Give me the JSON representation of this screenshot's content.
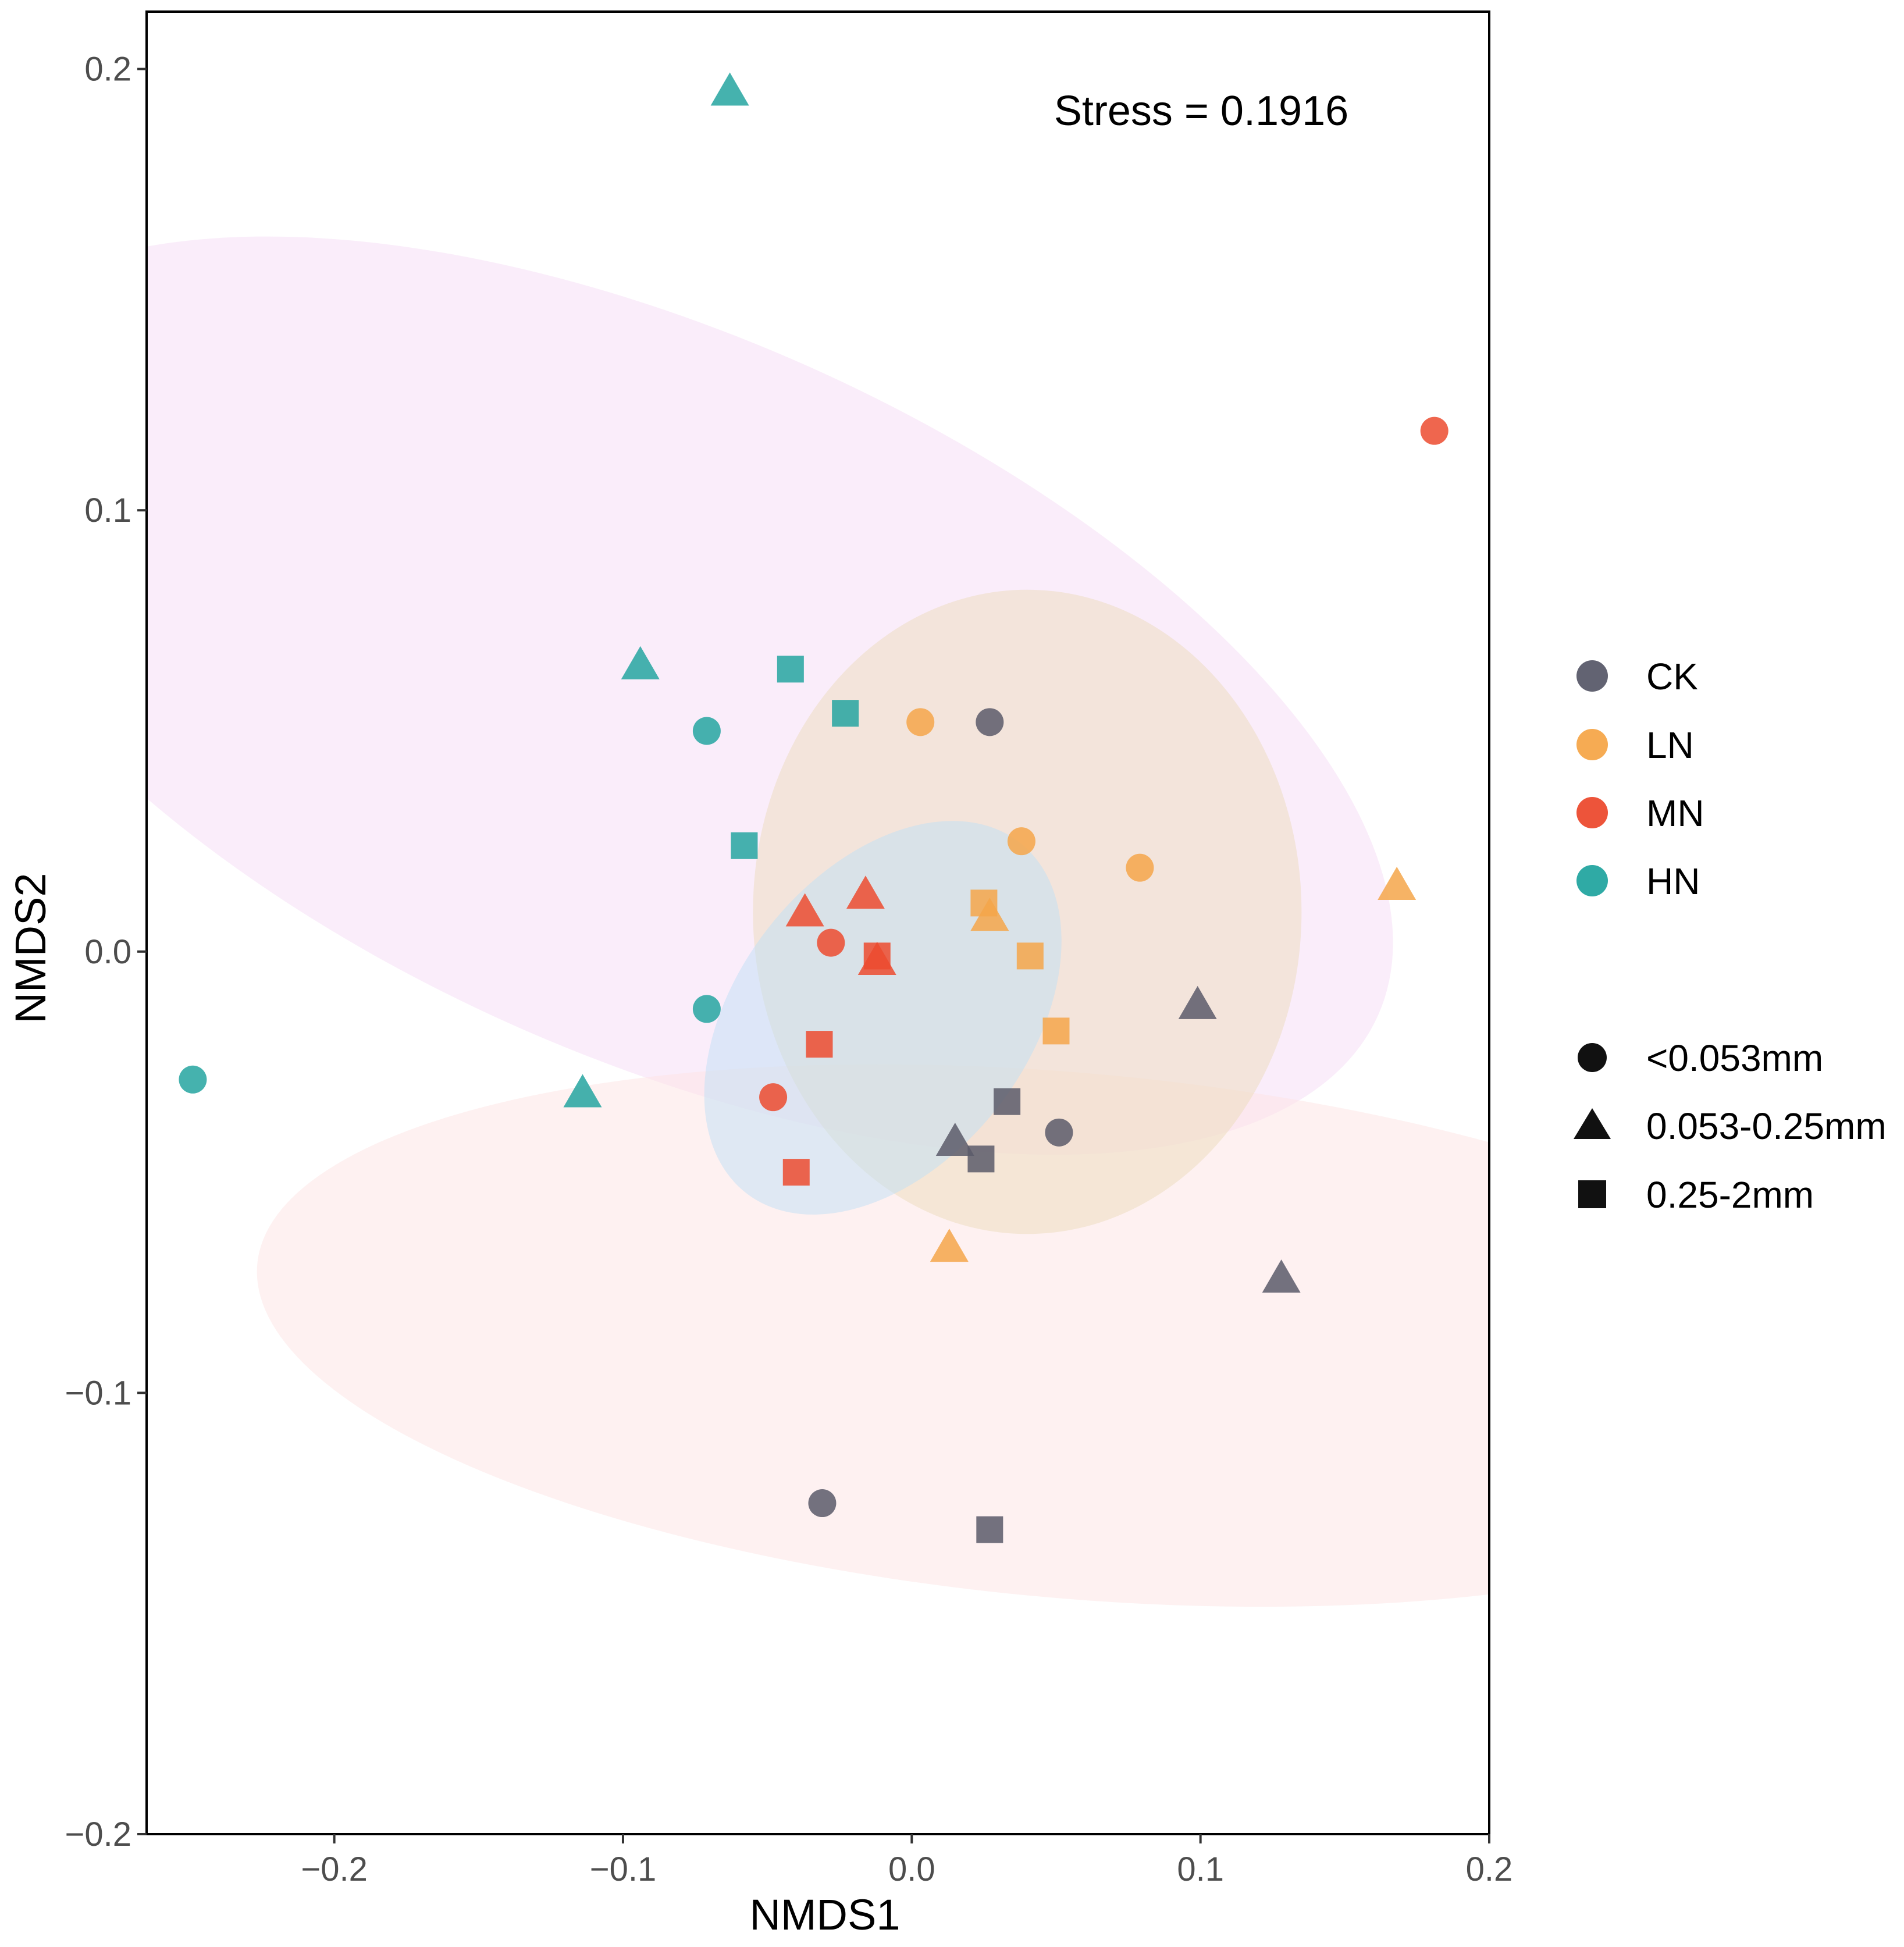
{
  "chart_data": {
    "type": "scatter",
    "title": "",
    "xlabel": "NMDS1",
    "ylabel": "NMDS2",
    "xlim": [
      -0.265,
      0.2
    ],
    "ylim": [
      -0.2,
      0.213
    ],
    "xticks": [
      -0.2,
      -0.1,
      0.0,
      0.1,
      0.2
    ],
    "yticks": [
      -0.2,
      -0.1,
      0.0,
      0.1,
      0.2
    ],
    "xtick_labels": [
      "−0.2",
      "−0.1",
      "0.0",
      "0.1",
      "0.2"
    ],
    "ytick_labels": [
      "−0.2",
      "−0.1",
      "0.0",
      "0.1",
      "0.2"
    ],
    "grid": false,
    "annotation": "Stress = 0.1916",
    "groups": [
      {
        "name": "CK",
        "color": "#5a5b6a"
      },
      {
        "name": "LN",
        "color": "#f5a64a"
      },
      {
        "name": "MN",
        "color": "#ec4b2f"
      },
      {
        "name": "HN",
        "color": "#24a5a0"
      }
    ],
    "sizes": [
      {
        "name": "<0.053mm",
        "shape": "circle"
      },
      {
        "name": "0.053-0.25mm",
        "shape": "triangle"
      },
      {
        "name": "0.25-2mm",
        "shape": "square"
      }
    ],
    "ellipses": [
      {
        "group": "HN",
        "center": [
          -0.087,
          0.058
        ],
        "rx": 0.125,
        "ry": 0.178,
        "angle_deg": 66,
        "fill": "#f6dcf6"
      },
      {
        "group": "CK",
        "center": [
          0.055,
          -0.087
        ],
        "rx": 0.091,
        "ry": 0.185,
        "angle_deg": 85,
        "fill": "#fde4e4"
      },
      {
        "group": "LN",
        "center": [
          0.04,
          0.009
        ],
        "rx": 0.095,
        "ry": 0.073,
        "angle_deg": 0,
        "fill": "#ecdcbc"
      },
      {
        "group": "MN",
        "center": [
          -0.01,
          -0.015
        ],
        "rx": 0.077,
        "ry": 0.033,
        "angle_deg": 52,
        "fill": "#bfe0f5"
      }
    ],
    "points": [
      {
        "x": -0.063,
        "y": 0.195,
        "group": "HN",
        "size": "0.053-0.25mm"
      },
      {
        "x": -0.094,
        "y": 0.065,
        "group": "HN",
        "size": "0.053-0.25mm"
      },
      {
        "x": -0.114,
        "y": -0.032,
        "group": "HN",
        "size": "0.053-0.25mm"
      },
      {
        "x": -0.071,
        "y": 0.05,
        "group": "HN",
        "size": "<0.053mm"
      },
      {
        "x": -0.071,
        "y": -0.013,
        "group": "HN",
        "size": "<0.053mm"
      },
      {
        "x": -0.249,
        "y": -0.029,
        "group": "HN",
        "size": "<0.053mm"
      },
      {
        "x": -0.042,
        "y": 0.064,
        "group": "HN",
        "size": "0.25-2mm"
      },
      {
        "x": -0.023,
        "y": 0.054,
        "group": "HN",
        "size": "0.25-2mm"
      },
      {
        "x": -0.058,
        "y": 0.024,
        "group": "HN",
        "size": "0.25-2mm"
      },
      {
        "x": 0.003,
        "y": 0.052,
        "group": "LN",
        "size": "<0.053mm"
      },
      {
        "x": 0.038,
        "y": 0.025,
        "group": "LN",
        "size": "<0.053mm"
      },
      {
        "x": 0.079,
        "y": 0.019,
        "group": "LN",
        "size": "<0.053mm"
      },
      {
        "x": 0.168,
        "y": 0.015,
        "group": "LN",
        "size": "0.053-0.25mm"
      },
      {
        "x": 0.027,
        "y": 0.008,
        "group": "LN",
        "size": "0.053-0.25mm"
      },
      {
        "x": 0.013,
        "y": -0.067,
        "group": "LN",
        "size": "0.053-0.25mm"
      },
      {
        "x": 0.025,
        "y": 0.011,
        "group": "LN",
        "size": "0.25-2mm"
      },
      {
        "x": 0.041,
        "y": -0.001,
        "group": "LN",
        "size": "0.25-2mm"
      },
      {
        "x": 0.05,
        "y": -0.018,
        "group": "LN",
        "size": "0.25-2mm"
      },
      {
        "x": 0.181,
        "y": 0.118,
        "group": "MN",
        "size": "<0.053mm"
      },
      {
        "x": -0.028,
        "y": 0.002,
        "group": "MN",
        "size": "<0.053mm"
      },
      {
        "x": -0.048,
        "y": -0.033,
        "group": "MN",
        "size": "<0.053mm"
      },
      {
        "x": -0.016,
        "y": 0.013,
        "group": "MN",
        "size": "0.053-0.25mm"
      },
      {
        "x": -0.037,
        "y": 0.009,
        "group": "MN",
        "size": "0.053-0.25mm"
      },
      {
        "x": -0.012,
        "y": -0.002,
        "group": "MN",
        "size": "0.053-0.25mm"
      },
      {
        "x": -0.012,
        "y": -0.001,
        "group": "MN",
        "size": "0.25-2mm"
      },
      {
        "x": -0.032,
        "y": -0.021,
        "group": "MN",
        "size": "0.25-2mm"
      },
      {
        "x": -0.04,
        "y": -0.05,
        "group": "MN",
        "size": "0.25-2mm"
      },
      {
        "x": 0.027,
        "y": 0.052,
        "group": "CK",
        "size": "<0.053mm"
      },
      {
        "x": 0.051,
        "y": -0.041,
        "group": "CK",
        "size": "<0.053mm"
      },
      {
        "x": -0.031,
        "y": -0.125,
        "group": "CK",
        "size": "<0.053mm"
      },
      {
        "x": 0.099,
        "y": -0.012,
        "group": "CK",
        "size": "0.053-0.25mm"
      },
      {
        "x": 0.015,
        "y": -0.043,
        "group": "CK",
        "size": "0.053-0.25mm"
      },
      {
        "x": 0.128,
        "y": -0.074,
        "group": "CK",
        "size": "0.053-0.25mm"
      },
      {
        "x": 0.033,
        "y": -0.034,
        "group": "CK",
        "size": "0.25-2mm"
      },
      {
        "x": 0.024,
        "y": -0.047,
        "group": "CK",
        "size": "0.25-2mm"
      },
      {
        "x": 0.027,
        "y": -0.131,
        "group": "CK",
        "size": "0.25-2mm"
      }
    ]
  }
}
